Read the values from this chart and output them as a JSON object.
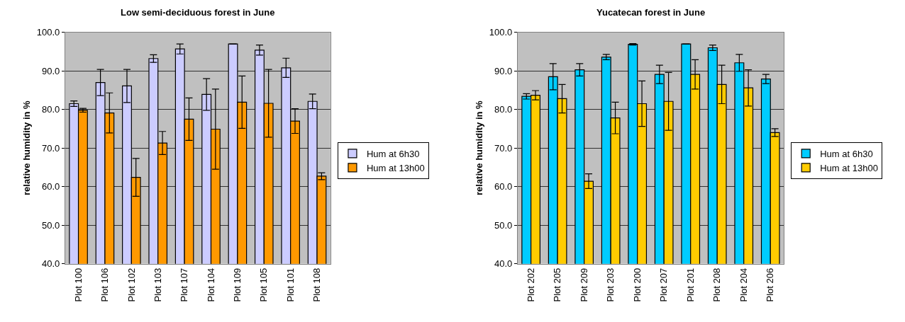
{
  "chart_data": [
    {
      "type": "bar",
      "title": "Low semi-deciduous forest in June",
      "ylabel": "relative humidity in %",
      "categories": [
        "Plot 100",
        "Plot 106",
        "Plot 102",
        "Plot 103",
        "Plot 107",
        "Plot 104",
        "Plot 109",
        "Plot 105",
        "Plot 101",
        "Plot 108"
      ],
      "series": [
        {
          "name": "Hum at 6h30",
          "color": "#ccccff",
          "values": [
            81.5,
            87.0,
            86.1,
            93.2,
            95.7,
            83.9,
            97.0,
            95.4,
            90.8,
            82.1
          ],
          "errors": [
            0.7,
            3.4,
            4.3,
            1.0,
            1.3,
            4.1,
            0,
            1.3,
            2.5,
            1.9
          ]
        },
        {
          "name": "Hum at 13h00",
          "color": "#ff9900",
          "values": [
            79.8,
            79.1,
            62.4,
            71.3,
            77.5,
            74.9,
            81.9,
            81.6,
            77.0,
            62.7
          ],
          "errors": [
            0.5,
            5.2,
            4.9,
            3.0,
            5.5,
            10.4,
            6.8,
            8.8,
            3.2,
            0.9
          ]
        }
      ],
      "ylim": [
        40,
        100
      ],
      "yticks": [
        {
          "value": 40,
          "label": "40.0"
        },
        {
          "value": 50,
          "label": "50.0"
        },
        {
          "value": 60,
          "label": "60.0"
        },
        {
          "value": 70,
          "label": "70.0"
        },
        {
          "value": 80,
          "label": "80.0"
        },
        {
          "value": 90,
          "label": "90.0"
        },
        {
          "value": 100,
          "label": "100.0"
        }
      ],
      "grid": "y",
      "legend": "right"
    },
    {
      "type": "bar",
      "title": "Yucatecan forest in June",
      "ylabel": "relative humidity in %",
      "categories": [
        "Plot 202",
        "Plot 205",
        "Plot 209",
        "Plot 203",
        "Plot 200",
        "Plot 207",
        "Plot 201",
        "Plot 208",
        "Plot 204",
        "Plot 206"
      ],
      "series": [
        {
          "name": "Hum at 6h30",
          "color": "#00ccff",
          "values": [
            83.4,
            88.5,
            90.3,
            93.6,
            96.9,
            89.1,
            97.0,
            96.0,
            92.1,
            87.9
          ],
          "errors": [
            0.7,
            3.4,
            1.6,
            0.7,
            0.2,
            2.4,
            0,
            0.7,
            2.2,
            1.2
          ]
        },
        {
          "name": "Hum at 13h00",
          "color": "#ffcc00",
          "values": [
            83.7,
            82.8,
            61.4,
            77.8,
            81.5,
            82.1,
            89.1,
            86.5,
            85.6,
            74.0
          ],
          "errors": [
            1.2,
            3.7,
            1.9,
            4.1,
            5.9,
            7.5,
            3.8,
            5.0,
            4.7,
            1.0
          ]
        }
      ],
      "ylim": [
        40,
        100
      ],
      "yticks": [
        {
          "value": 40,
          "label": "40.0"
        },
        {
          "value": 50,
          "label": "50.0"
        },
        {
          "value": 60,
          "label": "60.0"
        },
        {
          "value": 70,
          "label": "70.0"
        },
        {
          "value": 80,
          "label": "80.0"
        },
        {
          "value": 90,
          "label": "90.0"
        },
        {
          "value": 100,
          "label": "100.0"
        }
      ],
      "grid": "y",
      "legend": "right"
    }
  ]
}
